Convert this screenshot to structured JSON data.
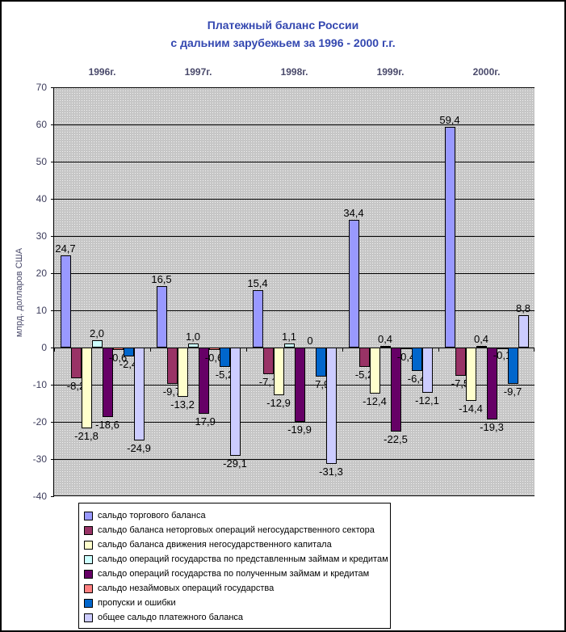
{
  "chart_data": {
    "type": "bar",
    "title_line1": "Платежный баланс России",
    "title_line2": "с дальним зарубежьем за 1996 - 2000 г.г.",
    "ylabel": "млрд. долларов США",
    "categories": [
      "1996г.",
      "1997г.",
      "1998г.",
      "1999г.",
      "2000г."
    ],
    "y_axis": {
      "min": -40,
      "max": 70,
      "step": 10
    },
    "grid": true,
    "legend_position": "bottom",
    "plot_bg": "#c6c6c6",
    "series": [
      {
        "name": "сальдо торгового баланса",
        "color": "#9999FF",
        "values": [
          24.7,
          16.5,
          15.4,
          34.4,
          59.4
        ],
        "labels": [
          "24,7",
          "16,5",
          "15,4",
          "34,4",
          "59,4"
        ]
      },
      {
        "name": "сальдо баланса неторговых операций негосударственного сектора",
        "color": "#993366",
        "values": [
          -8.2,
          -9.7,
          -7.1,
          -5.2,
          -7.5
        ],
        "labels": [
          "-8,2",
          "-9,7",
          "-7,1",
          "-5,2",
          "-7,5"
        ]
      },
      {
        "name": "сальдо баланса движения негосударственного капитала",
        "color": "#FFFFCC",
        "values": [
          -21.8,
          -13.2,
          -12.9,
          -12.4,
          -14.4
        ],
        "labels": [
          "-21,8",
          "-13,2",
          "-12,9",
          "-12,4",
          "-14,4"
        ]
      },
      {
        "name": "сальдо операций государства по представленным займам и кредитам",
        "color": "#CCFFFF",
        "values": [
          2.0,
          1.0,
          1.1,
          0.4,
          0.4
        ],
        "labels": [
          "2,0",
          "1,0",
          "1,1",
          "0,4",
          "0,4"
        ]
      },
      {
        "name": "сальдо операций государства по полученным займам и кредитам",
        "color": "#660066",
        "values": [
          -18.6,
          -17.9,
          -19.9,
          -22.5,
          -19.3
        ],
        "labels": [
          "-18,6",
          "-17,9",
          "-19,9",
          "-22,5",
          "-19,3"
        ]
      },
      {
        "name": "сальдо незаймовых операций государства",
        "color": "#FF8080",
        "values": [
          -0.6,
          -0.6,
          0,
          -0.4,
          -0.1
        ],
        "labels": [
          "-0,6",
          "-0,6",
          "0",
          "-0,4",
          "-0,1"
        ]
      },
      {
        "name": "пропуски и ошибки",
        "color": "#0066CC",
        "values": [
          -2.4,
          -5.2,
          -7.9,
          -6.4,
          -9.7
        ],
        "labels": [
          "-2,4",
          "-5,2",
          "-7,9",
          "-6,4",
          "-9,7"
        ]
      },
      {
        "name": "общее сальдо платежного баланса",
        "color": "#CCCCFF",
        "values": [
          -24.9,
          -29.1,
          -31.3,
          -12.1,
          8.8
        ],
        "labels": [
          "-24,9",
          "-29,1",
          "-31,3",
          "-12,1",
          "8,8"
        ]
      }
    ]
  }
}
